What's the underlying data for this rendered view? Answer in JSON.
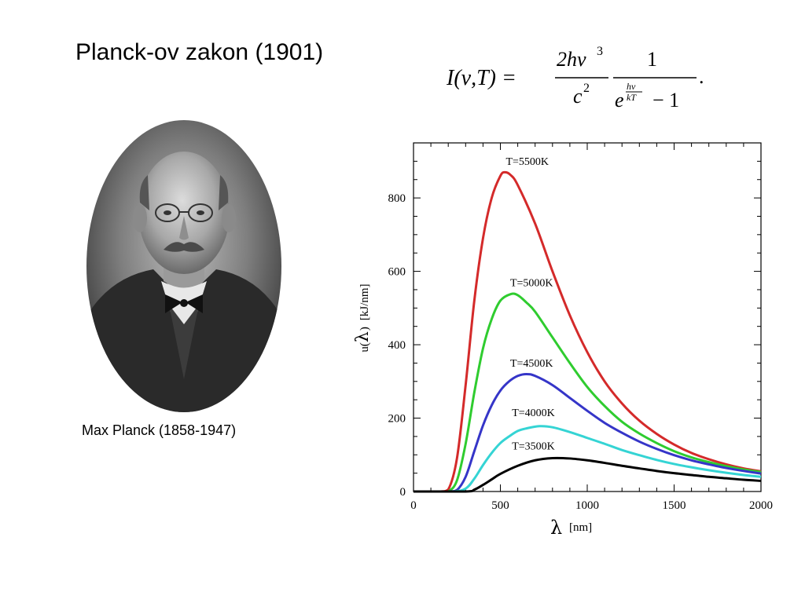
{
  "slide": {
    "title": "Planck-ov zakon (1901)",
    "caption": "Max Planck (1858-1947)"
  },
  "formula": {
    "lhs": "I(ν,T) =",
    "num1": "2hν",
    "num1_exp": "3",
    "den1": "c",
    "den1_exp": "2",
    "num2": "1",
    "den2_base": "e",
    "den2_exp_num": "hν",
    "den2_exp_den": "kT",
    "den2_tail": "− 1",
    "period": "."
  },
  "chart_data": {
    "type": "line",
    "xlabel_symbol": "λ",
    "xlabel_unit": "[nm]",
    "ylabel_prefix": "u(",
    "ylabel_symbol": "λ",
    "ylabel_suffix": ")",
    "ylabel_unit": "[kJ/nm]",
    "xlim": [
      0,
      2000
    ],
    "ylim": [
      0,
      950
    ],
    "xticks": [
      0,
      500,
      1000,
      1500,
      2000
    ],
    "xtick_labels": [
      "0",
      "500",
      "1000",
      "1500",
      "2000"
    ],
    "yticks": [
      0,
      200,
      400,
      600,
      800
    ],
    "ytick_labels": [
      "0",
      "200",
      "400",
      "600",
      "800"
    ],
    "grid": false,
    "series": [
      {
        "name": "T=5500K",
        "color": "#d42a2a",
        "label_x": 655,
        "label_y": 890,
        "points": [
          [
            0,
            0
          ],
          [
            150,
            0
          ],
          [
            200,
            5
          ],
          [
            250,
            90
          ],
          [
            300,
            290
          ],
          [
            350,
            520
          ],
          [
            400,
            690
          ],
          [
            450,
            800
          ],
          [
            500,
            860
          ],
          [
            527,
            870
          ],
          [
            560,
            862
          ],
          [
            600,
            835
          ],
          [
            700,
            730
          ],
          [
            800,
            600
          ],
          [
            900,
            480
          ],
          [
            1000,
            380
          ],
          [
            1100,
            300
          ],
          [
            1200,
            240
          ],
          [
            1300,
            193
          ],
          [
            1400,
            157
          ],
          [
            1500,
            128
          ],
          [
            1600,
            105
          ],
          [
            1700,
            88
          ],
          [
            1800,
            74
          ],
          [
            1900,
            63
          ],
          [
            2000,
            55
          ]
        ]
      },
      {
        "name": "T=5000K",
        "color": "#2fcc2f",
        "label_x": 680,
        "label_y": 560,
        "points": [
          [
            0,
            0
          ],
          [
            150,
            0
          ],
          [
            200,
            0
          ],
          [
            250,
            30
          ],
          [
            300,
            130
          ],
          [
            350,
            270
          ],
          [
            400,
            390
          ],
          [
            450,
            470
          ],
          [
            500,
            520
          ],
          [
            560,
            538
          ],
          [
            600,
            535
          ],
          [
            650,
            515
          ],
          [
            700,
            490
          ],
          [
            800,
            420
          ],
          [
            900,
            350
          ],
          [
            1000,
            285
          ],
          [
            1100,
            233
          ],
          [
            1200,
            190
          ],
          [
            1300,
            158
          ],
          [
            1400,
            132
          ],
          [
            1500,
            110
          ],
          [
            1600,
            93
          ],
          [
            1700,
            80
          ],
          [
            1800,
            69
          ],
          [
            1900,
            60
          ],
          [
            2000,
            53
          ]
        ]
      },
      {
        "name": "T=4500K",
        "color": "#3535c8",
        "label_x": 680,
        "label_y": 340,
        "points": [
          [
            0,
            0
          ],
          [
            200,
            0
          ],
          [
            250,
            4
          ],
          [
            300,
            40
          ],
          [
            350,
            110
          ],
          [
            400,
            180
          ],
          [
            450,
            235
          ],
          [
            500,
            275
          ],
          [
            550,
            300
          ],
          [
            600,
            315
          ],
          [
            650,
            320
          ],
          [
            700,
            315
          ],
          [
            800,
            290
          ],
          [
            900,
            255
          ],
          [
            1000,
            220
          ],
          [
            1100,
            187
          ],
          [
            1200,
            160
          ],
          [
            1300,
            136
          ],
          [
            1400,
            116
          ],
          [
            1500,
            99
          ],
          [
            1600,
            85
          ],
          [
            1700,
            74
          ],
          [
            1800,
            64
          ],
          [
            1900,
            56
          ],
          [
            2000,
            49
          ]
        ]
      },
      {
        "name": "T=4000K",
        "color": "#35d4d4",
        "label_x": 690,
        "label_y": 205,
        "points": [
          [
            0,
            0
          ],
          [
            220,
            0
          ],
          [
            300,
            8
          ],
          [
            350,
            35
          ],
          [
            400,
            72
          ],
          [
            450,
            105
          ],
          [
            500,
            132
          ],
          [
            550,
            150
          ],
          [
            600,
            165
          ],
          [
            650,
            172
          ],
          [
            725,
            178
          ],
          [
            800,
            175
          ],
          [
            900,
            162
          ],
          [
            1000,
            146
          ],
          [
            1100,
            130
          ],
          [
            1200,
            113
          ],
          [
            1300,
            99
          ],
          [
            1400,
            86
          ],
          [
            1500,
            75
          ],
          [
            1600,
            66
          ],
          [
            1700,
            58
          ],
          [
            1800,
            51
          ],
          [
            1900,
            45
          ],
          [
            2000,
            40
          ]
        ]
      },
      {
        "name": "T=3500K",
        "color": "#000000",
        "label_x": 690,
        "label_y": 115,
        "points": [
          [
            0,
            0
          ],
          [
            300,
            0
          ],
          [
            350,
            5
          ],
          [
            400,
            18
          ],
          [
            450,
            33
          ],
          [
            500,
            48
          ],
          [
            600,
            70
          ],
          [
            700,
            85
          ],
          [
            800,
            91
          ],
          [
            900,
            90
          ],
          [
            1000,
            85
          ],
          [
            1100,
            78
          ],
          [
            1200,
            70
          ],
          [
            1300,
            63
          ],
          [
            1400,
            56
          ],
          [
            1500,
            50
          ],
          [
            1600,
            45
          ],
          [
            1700,
            40
          ],
          [
            1800,
            36
          ],
          [
            1900,
            32
          ],
          [
            2000,
            29
          ]
        ]
      }
    ]
  }
}
